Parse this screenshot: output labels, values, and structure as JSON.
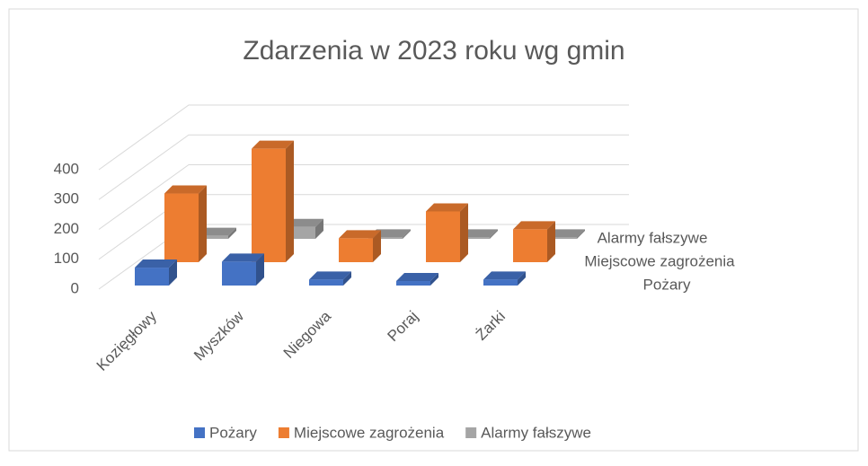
{
  "chart_data": {
    "type": "bar3d",
    "title": "Zdarzenia w 2023 roku wg gmin",
    "categories": [
      "Kozięgłowy",
      "Myszków",
      "Niegowa",
      "Poraj",
      "Żarki"
    ],
    "series": [
      {
        "name": "Pożary",
        "color": "#4472c4",
        "values": [
          60,
          80,
          20,
          15,
          20
        ]
      },
      {
        "name": "Miejscowe zagrożenia",
        "color": "#ed7d31",
        "values": [
          230,
          380,
          80,
          170,
          110
        ]
      },
      {
        "name": "Alarmy fałszywe",
        "color": "#a5a5a5",
        "values": [
          10,
          40,
          5,
          5,
          5
        ]
      }
    ],
    "ylim": [
      0,
      400
    ],
    "yticks": [
      0,
      100,
      200,
      300,
      400
    ],
    "grid": true,
    "legend": "bottom"
  }
}
